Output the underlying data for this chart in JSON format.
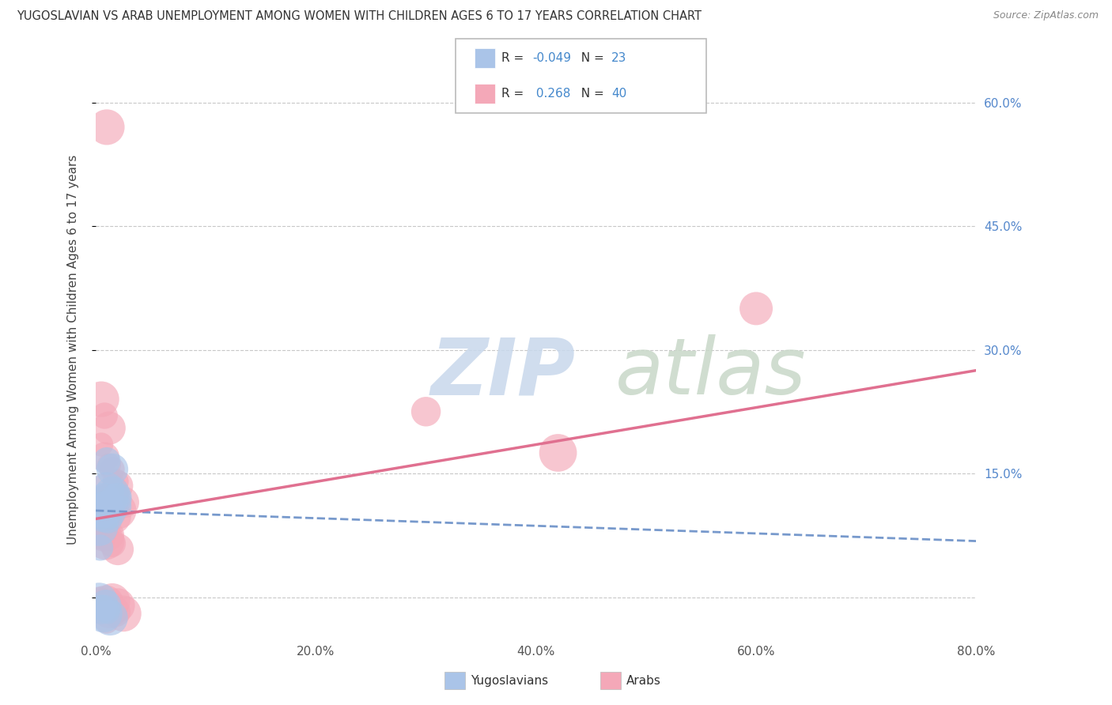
{
  "title": "YUGOSLAVIAN VS ARAB UNEMPLOYMENT AMONG WOMEN WITH CHILDREN AGES 6 TO 17 YEARS CORRELATION CHART",
  "source": "Source: ZipAtlas.com",
  "ylabel": "Unemployment Among Women with Children Ages 6 to 17 years",
  "xlim": [
    0.0,
    0.8
  ],
  "ylim": [
    -0.05,
    0.65
  ],
  "yticks": [
    0.0,
    0.15,
    0.3,
    0.45,
    0.6
  ],
  "ytick_labels": [
    "",
    "15.0%",
    "30.0%",
    "45.0%",
    "60.0%"
  ],
  "xticks": [
    0.0,
    0.2,
    0.4,
    0.6,
    0.8
  ],
  "xtick_labels": [
    "0.0%",
    "20.0%",
    "40.0%",
    "60.0%",
    "80.0%"
  ],
  "legend_R1": "-0.049",
  "legend_N1": "23",
  "legend_R2": "0.268",
  "legend_N2": "40",
  "background_color": "#ffffff",
  "grid_color": "#c8c8c8",
  "watermark_zip": "ZIP",
  "watermark_atlas": "atlas",
  "watermark_color_zip": "#c8d8ec",
  "watermark_color_atlas": "#c8d8c8",
  "yug_color": "#aac4e8",
  "arab_color": "#f4a8b8",
  "yug_line_color": "#7799cc",
  "arab_line_color": "#e07090",
  "yug_scatter": [
    [
      0.005,
      0.105
    ],
    [
      0.008,
      0.12
    ],
    [
      0.01,
      0.13
    ],
    [
      0.012,
      0.115
    ],
    [
      0.015,
      0.125
    ],
    [
      0.018,
      0.118
    ],
    [
      0.02,
      0.122
    ],
    [
      0.022,
      0.11
    ],
    [
      0.003,
      0.085
    ],
    [
      0.005,
      0.095
    ],
    [
      0.007,
      0.1
    ],
    [
      0.009,
      0.108
    ],
    [
      0.011,
      0.095
    ],
    [
      0.013,
      0.102
    ],
    [
      0.003,
      -0.005
    ],
    [
      0.005,
      -0.015
    ],
    [
      0.007,
      -0.02
    ],
    [
      0.009,
      -0.01
    ],
    [
      0.011,
      -0.018
    ],
    [
      0.013,
      -0.025
    ],
    [
      0.004,
      0.06
    ],
    [
      0.015,
      0.155
    ],
    [
      0.01,
      0.165
    ]
  ],
  "arab_scatter": [
    [
      0.01,
      0.57
    ],
    [
      0.005,
      0.24
    ],
    [
      0.008,
      0.22
    ],
    [
      0.012,
      0.205
    ],
    [
      0.005,
      0.185
    ],
    [
      0.008,
      0.17
    ],
    [
      0.012,
      0.16
    ],
    [
      0.015,
      0.155
    ],
    [
      0.018,
      0.14
    ],
    [
      0.02,
      0.135
    ],
    [
      0.003,
      0.12
    ],
    [
      0.006,
      0.115
    ],
    [
      0.009,
      0.125
    ],
    [
      0.012,
      0.13
    ],
    [
      0.015,
      0.12
    ],
    [
      0.018,
      0.11
    ],
    [
      0.02,
      0.105
    ],
    [
      0.025,
      0.115
    ],
    [
      0.008,
      0.1
    ],
    [
      0.01,
      0.095
    ],
    [
      0.013,
      0.105
    ],
    [
      0.016,
      0.098
    ],
    [
      0.003,
      0.08
    ],
    [
      0.006,
      0.072
    ],
    [
      0.009,
      0.068
    ],
    [
      0.012,
      0.075
    ],
    [
      0.015,
      0.065
    ],
    [
      0.02,
      0.058
    ],
    [
      0.003,
      -0.005
    ],
    [
      0.006,
      -0.012
    ],
    [
      0.009,
      -0.008
    ],
    [
      0.012,
      -0.015
    ],
    [
      0.015,
      -0.005
    ],
    [
      0.018,
      -0.018
    ],
    [
      0.02,
      -0.01
    ],
    [
      0.025,
      -0.02
    ],
    [
      0.01,
      -0.03
    ],
    [
      0.3,
      0.225
    ],
    [
      0.6,
      0.35
    ],
    [
      0.42,
      0.175
    ]
  ],
  "yug_trend": [
    0.0,
    0.8,
    0.105,
    0.068
  ],
  "arab_trend": [
    0.0,
    0.8,
    0.095,
    0.275
  ]
}
